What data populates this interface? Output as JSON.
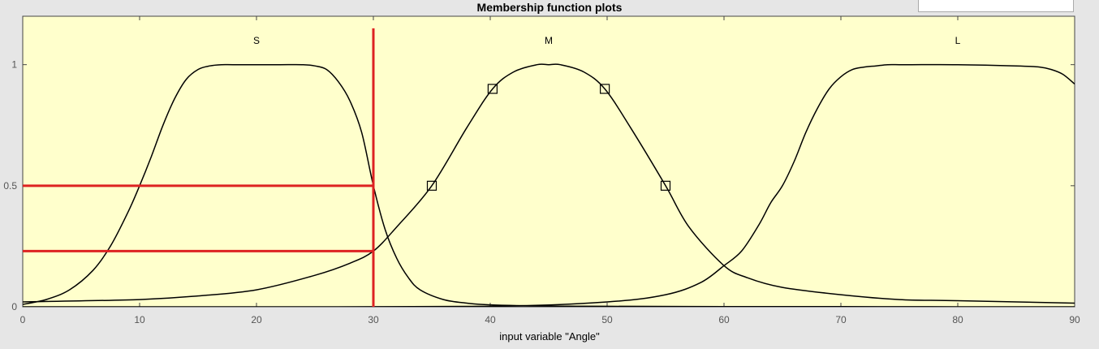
{
  "window": {
    "title": "Membership function plots",
    "top_right_field": ""
  },
  "chart_data": {
    "type": "line",
    "title": "Membership function plots",
    "xlabel": "input variable \"Angle\"",
    "ylabel": "",
    "xlim": [
      0,
      90
    ],
    "ylim": [
      0,
      1.2
    ],
    "xticks": [
      0,
      10,
      20,
      30,
      40,
      50,
      60,
      70,
      80,
      90
    ],
    "yticks": [
      0,
      0.5,
      1
    ],
    "ytick_labels": [
      "0",
      "0.5",
      "1"
    ],
    "grid": false,
    "background": "#ffffcc",
    "curve_color": "#000000",
    "highlight_color": "#dd2222",
    "series": [
      {
        "name": "S",
        "x": [
          0,
          2,
          4,
          6,
          7.5,
          9,
          10,
          11,
          12,
          13,
          14,
          15,
          16,
          17,
          18,
          20,
          22,
          24,
          25,
          26,
          27,
          28,
          29,
          30,
          31,
          32,
          33,
          34,
          36,
          38,
          40,
          45,
          50,
          60,
          70,
          80,
          90
        ],
        "y": [
          0.01,
          0.03,
          0.07,
          0.15,
          0.25,
          0.39,
          0.5,
          0.62,
          0.75,
          0.86,
          0.94,
          0.98,
          0.995,
          1.0,
          1.0,
          1.0,
          1.0,
          1.0,
          0.995,
          0.98,
          0.93,
          0.85,
          0.72,
          0.5,
          0.32,
          0.2,
          0.12,
          0.07,
          0.03,
          0.015,
          0.008,
          0.003,
          0.002,
          0.001,
          0.001,
          0.0,
          0.0
        ]
      },
      {
        "name": "M",
        "x": [
          0,
          10,
          15,
          20,
          25,
          28,
          30,
          32,
          35,
          38,
          40.2,
          42,
          44,
          45,
          46,
          48,
          49.8,
          52,
          55,
          57,
          60,
          62,
          65,
          70,
          75,
          80,
          90
        ],
        "y": [
          0.02,
          0.03,
          0.045,
          0.07,
          0.13,
          0.18,
          0.23,
          0.33,
          0.5,
          0.74,
          0.9,
          0.97,
          1.0,
          1.0,
          1.0,
          0.97,
          0.9,
          0.74,
          0.5,
          0.33,
          0.17,
          0.12,
          0.08,
          0.05,
          0.03,
          0.025,
          0.015
        ]
      },
      {
        "name": "L",
        "x": [
          0,
          20,
          40,
          50,
          55,
          58,
          60,
          61.5,
          63,
          64,
          65,
          66,
          67,
          68,
          69,
          70,
          71,
          72,
          73,
          74,
          75,
          76,
          80,
          85,
          87,
          88,
          89,
          90
        ],
        "y": [
          0.0,
          0.0,
          0.002,
          0.02,
          0.05,
          0.1,
          0.17,
          0.23,
          0.34,
          0.43,
          0.5,
          0.6,
          0.72,
          0.82,
          0.9,
          0.95,
          0.98,
          0.99,
          0.995,
          1.0,
          1.0,
          1.0,
          1.0,
          0.995,
          0.99,
          0.98,
          0.96,
          0.92
        ]
      }
    ],
    "label_positions": [
      {
        "name": "S",
        "x": 20,
        "y": 1.1
      },
      {
        "name": "M",
        "x": 45,
        "y": 1.1
      },
      {
        "name": "L",
        "x": 80,
        "y": 1.1
      }
    ],
    "markers": [
      {
        "x": 35,
        "y": 0.5
      },
      {
        "x": 40.2,
        "y": 0.9
      },
      {
        "x": 49.8,
        "y": 0.9
      },
      {
        "x": 55,
        "y": 0.5
      }
    ],
    "highlight": {
      "vline_x": 30,
      "vline_y": [
        0,
        1.15
      ],
      "hlines": [
        {
          "y": 0.5,
          "x": [
            0,
            30
          ]
        },
        {
          "y": 0.23,
          "x": [
            0,
            30
          ]
        }
      ]
    }
  }
}
